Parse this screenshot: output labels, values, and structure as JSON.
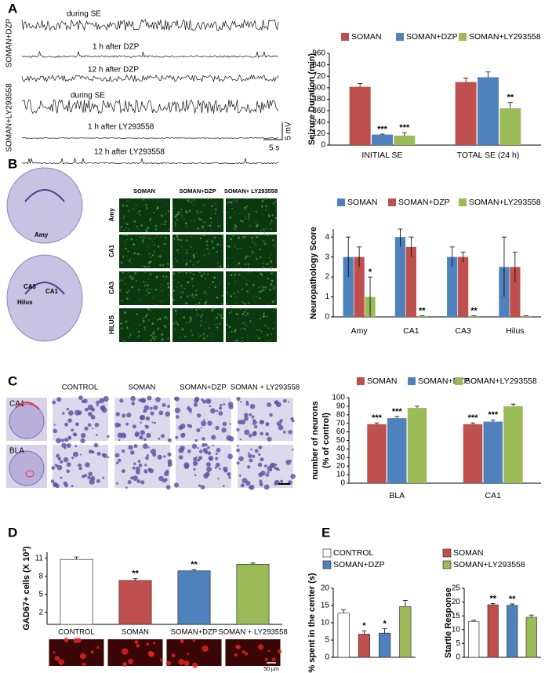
{
  "figure": {
    "panels": [
      "A",
      "B",
      "C",
      "D",
      "E"
    ],
    "traces": {
      "groups": [
        "SOMAN+DZP",
        "SOMAN+LY293558"
      ],
      "labels": [
        "during SE",
        "1 h after DZP",
        "12 h after DZP",
        "during SE",
        "1 h after LY293558",
        "12 h after LY293558"
      ],
      "scale_y": "5 mV",
      "scale_x": "5 s"
    },
    "histology_b": {
      "brain_labels": [
        "Amy",
        "CA3",
        "CA1",
        "Hilus"
      ],
      "columns": [
        "SOMAN",
        "SOMAN+DZP",
        "SOMAN+ LY293558"
      ],
      "rows": [
        "Amy",
        "CA1",
        "CA3",
        "HILUS"
      ]
    },
    "histology_c": {
      "regions": [
        "CA1",
        "BLA"
      ],
      "columns": [
        "CONTROL",
        "SOMAN",
        "SOMAN+DZP",
        "SOMAN + LY293558"
      ]
    },
    "histology_d": {
      "scale": "50 µm"
    }
  },
  "chart_data": [
    {
      "type": "bar",
      "ylabel": "Seizure Duration (min)",
      "categories": [
        "INITIAL SE",
        "TOTAL SE (24 h)"
      ],
      "series": [
        {
          "name": "SOMAN",
          "color": "#c0504d",
          "values": [
            610,
            660
          ],
          "errors": [
            35,
            40
          ]
        },
        {
          "name": "SOMAN+DZP",
          "color": "#4f81bd",
          "values": [
            110,
            710
          ],
          "errors": [
            5,
            55
          ],
          "significance": [
            "***",
            null
          ]
        },
        {
          "name": "SOMAN+LY293558",
          "color": "#9bbb59",
          "values": [
            100,
            385
          ],
          "errors": [
            30,
            60
          ],
          "significance": [
            "***",
            "**"
          ]
        }
      ],
      "ylim": [
        0,
        960
      ],
      "yticks": [
        0,
        120,
        240,
        360,
        480,
        600,
        720,
        840,
        960
      ],
      "legend": "top"
    },
    {
      "type": "bar",
      "ylabel": "Neuropathology Score",
      "categories": [
        "Amy",
        "CA1",
        "CA3",
        "Hilus"
      ],
      "series": [
        {
          "name": "SOMAN",
          "color": "#4f81bd",
          "values": [
            3,
            4,
            3,
            2.5
          ],
          "errors": [
            1,
            0.5,
            0.5,
            1.5
          ]
        },
        {
          "name": "SOMAN+DZP",
          "color": "#c0504d",
          "values": [
            3,
            3.5,
            3,
            2.5
          ],
          "errors": [
            0.5,
            0.5,
            0.25,
            0.75
          ]
        },
        {
          "name": "SOMAN+LY293558",
          "color": "#9bbb59",
          "values": [
            1,
            0.05,
            0.05,
            0.05
          ],
          "errors": [
            1,
            0,
            0,
            0
          ],
          "significance": [
            "*",
            "**",
            "**",
            null
          ]
        }
      ],
      "ylim": [
        0,
        4.4
      ],
      "yticks": [
        0,
        1,
        2,
        3,
        4
      ],
      "legend": "top"
    },
    {
      "type": "bar",
      "ylabel": [
        "number of neurons",
        "(% of control)"
      ],
      "categories": [
        "BLA",
        "CA1"
      ],
      "series": [
        {
          "name": "SOMAN",
          "color": "#c0504d",
          "values": [
            69,
            69
          ],
          "errors": [
            1.5,
            1.5
          ],
          "significance": [
            "***",
            "***"
          ]
        },
        {
          "name": "SOMAN+DZP",
          "color": "#4f81bd",
          "values": [
            76,
            72
          ],
          "errors": [
            2,
            2
          ],
          "significance": [
            "***",
            "***"
          ]
        },
        {
          "name": "SOMAN+LY293558",
          "color": "#9bbb59",
          "values": [
            88,
            90
          ],
          "errors": [
            2,
            2.5
          ]
        }
      ],
      "ylim": [
        0,
        100
      ],
      "yticks": [
        0,
        10,
        20,
        30,
        40,
        50,
        60,
        70,
        80,
        90,
        100
      ],
      "legend": "top"
    },
    {
      "type": "bar",
      "ylabel": "GAD67+ cells (X 10³)",
      "categories": [
        "CONTROL",
        "SOMAN",
        "SOMAN+DZP",
        "SOMAN + LY293558"
      ],
      "series": [
        {
          "colors": [
            "#ffffff",
            "#c0504d",
            "#4f81bd",
            "#9bbb59"
          ],
          "values": [
            10.8,
            7.3,
            8.9,
            10
          ],
          "errors": [
            0.4,
            0.3,
            0.2,
            0.2
          ],
          "significance": [
            null,
            "**",
            "**",
            null
          ]
        }
      ],
      "ylim": [
        0,
        12
      ],
      "yticks": [
        2,
        5,
        8,
        11
      ]
    },
    {
      "type": "bar",
      "ylabel": "% spent in the center (s)",
      "categories": [
        "CONTROL",
        "SOMAN",
        "SOMAN+DZP",
        "SOMAN+LY293558"
      ],
      "series": [
        {
          "colors": [
            "#ffffff",
            "#c0504d",
            "#4f81bd",
            "#9bbb59"
          ],
          "values": [
            12.8,
            6.7,
            7,
            14.7
          ],
          "errors": [
            1,
            1,
            1.3,
            1.8
          ],
          "significance": [
            null,
            "*",
            "*",
            null
          ]
        }
      ],
      "ylim": [
        0,
        20
      ],
      "yticks": [
        0,
        5,
        10,
        15,
        20
      ],
      "legend": "top"
    },
    {
      "type": "bar",
      "ylabel": "Startle Response",
      "categories": [
        null,
        null,
        null,
        null
      ],
      "series": [
        {
          "colors": [
            "#ffffff",
            "#c0504d",
            "#4f81bd",
            "#9bbb59"
          ],
          "values": [
            13,
            19,
            18.8,
            14.5
          ],
          "errors": [
            0.4,
            0.5,
            0.5,
            0.8
          ],
          "significance": [
            null,
            "**",
            "**",
            null
          ]
        }
      ],
      "ylim": [
        0,
        25
      ],
      "yticks": [
        0,
        5,
        10,
        15,
        20,
        25
      ]
    }
  ]
}
